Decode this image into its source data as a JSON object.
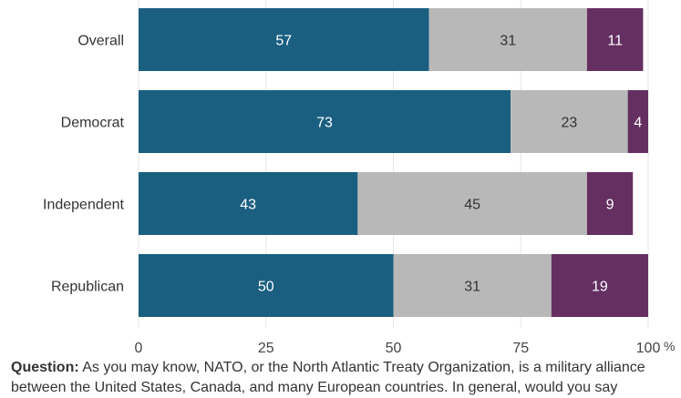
{
  "chart_data": {
    "type": "bar",
    "orientation": "horizontal",
    "stacked": true,
    "categories": [
      "Overall",
      "Democrat",
      "Independent",
      "Republican"
    ],
    "series": [
      {
        "values": [
          57,
          73,
          43,
          50
        ],
        "color": "#1a5f80"
      },
      {
        "values": [
          31,
          23,
          45,
          31
        ],
        "color": "#b8b8b8"
      },
      {
        "values": [
          11,
          4,
          9,
          19
        ],
        "color": "#652f62"
      }
    ],
    "xlim": [
      0,
      100
    ],
    "xticks": [
      "0",
      "25",
      "50",
      "75",
      "100"
    ],
    "x_unit": "%",
    "grid": "vertical",
    "data_labels": true
  },
  "footnote": {
    "label": "Question:",
    "text": "As you may know, NATO, or the North Atlantic Treaty Organization, is a military alliance between the United States, Canada, and many European countries. In general, would you say"
  }
}
